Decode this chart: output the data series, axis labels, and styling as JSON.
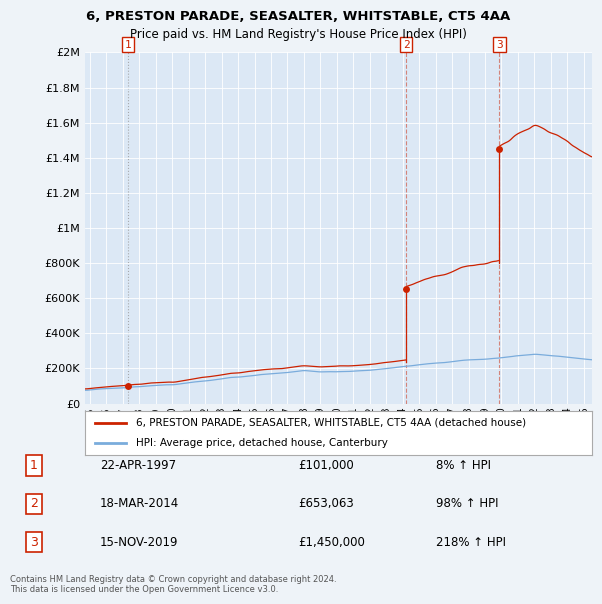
{
  "title_line1": "6, PRESTON PARADE, SEASALTER, WHITSTABLE, CT5 4AA",
  "title_line2": "Price paid vs. HM Land Registry's House Price Index (HPI)",
  "ylabel_ticks": [
    "£0",
    "£200K",
    "£400K",
    "£600K",
    "£800K",
    "£1M",
    "£1.2M",
    "£1.4M",
    "£1.6M",
    "£1.8M",
    "£2M"
  ],
  "ytick_values": [
    0,
    200000,
    400000,
    600000,
    800000,
    1000000,
    1200000,
    1400000,
    1600000,
    1800000,
    2000000
  ],
  "xmin": 1994.7,
  "xmax": 2025.5,
  "ymin": 0,
  "ymax": 2000000,
  "hpi_color": "#7aacdc",
  "price_color": "#cc2200",
  "sale_points": [
    {
      "year": 1997.31,
      "price": 101000,
      "label": "1"
    },
    {
      "year": 2014.22,
      "price": 653063,
      "label": "2"
    },
    {
      "year": 2019.88,
      "price": 1450000,
      "label": "3"
    }
  ],
  "legend_price_label": "6, PRESTON PARADE, SEASALTER, WHITSTABLE, CT5 4AA (detached house)",
  "legend_hpi_label": "HPI: Average price, detached house, Canterbury",
  "table_rows": [
    {
      "num": "1",
      "date": "22-APR-1997",
      "price": "£101,000",
      "change": "8% ↑ HPI"
    },
    {
      "num": "2",
      "date": "18-MAR-2014",
      "price": "£653,063",
      "change": "98% ↑ HPI"
    },
    {
      "num": "3",
      "date": "15-NOV-2019",
      "price": "£1,450,000",
      "change": "218% ↑ HPI"
    }
  ],
  "footer": "Contains HM Land Registry data © Crown copyright and database right 2024.\nThis data is licensed under the Open Government Licence v3.0.",
  "background_color": "#eef3f8",
  "plot_bg_color": "#dce8f5"
}
